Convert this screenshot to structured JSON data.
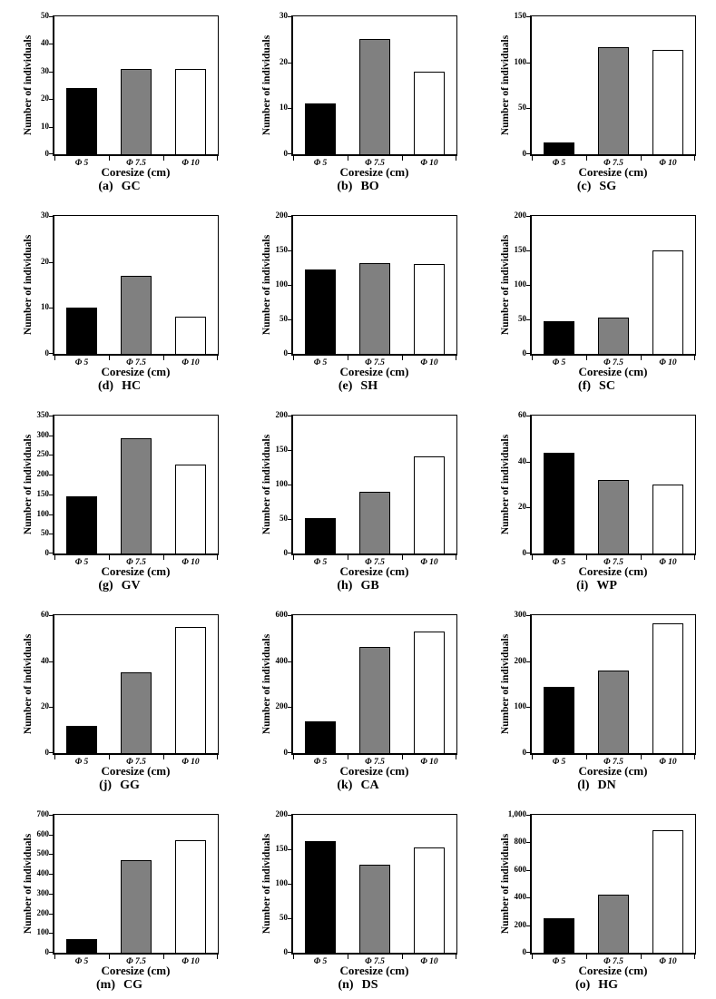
{
  "style": {
    "background": "#ffffff",
    "axis_color": "#000000",
    "bar_border": "#000000",
    "bar_colors": [
      "#000000",
      "#808080",
      "#ffffff"
    ]
  },
  "chart_data": [
    {
      "type": "bar",
      "caption_index": "(a)",
      "caption_code": "GC",
      "categories": [
        "Φ 5",
        "Φ 7.5",
        "Φ 10"
      ],
      "values": [
        24,
        31,
        31
      ],
      "ylim": [
        0,
        50
      ],
      "ytick_labels": [
        "0",
        "10",
        "20",
        "30",
        "40",
        "50"
      ],
      "xlabel": "Coresize (cm)",
      "ylabel": "Number of individuals",
      "grid": false,
      "legend": "none"
    },
    {
      "type": "bar",
      "caption_index": "(b)",
      "caption_code": "BO",
      "categories": [
        "Φ 5",
        "Φ 7.5",
        "Φ 10"
      ],
      "values": [
        11,
        25,
        18
      ],
      "ylim": [
        0,
        30
      ],
      "ytick_labels": [
        "0",
        "10",
        "20",
        "30"
      ],
      "xlabel": "Coresize (cm)",
      "ylabel": "Number of individuals",
      "grid": false,
      "legend": "none"
    },
    {
      "type": "bar",
      "caption_index": "(c)",
      "caption_code": "SG",
      "categories": [
        "Φ 5",
        "Φ 7.5",
        "Φ 10"
      ],
      "values": [
        13,
        116,
        113
      ],
      "ylim": [
        0,
        150
      ],
      "ytick_labels": [
        "0",
        "50",
        "100",
        "150"
      ],
      "xlabel": "Coresize (cm)",
      "ylabel": "Number of individuals",
      "grid": false,
      "legend": "none"
    },
    {
      "type": "bar",
      "caption_index": "(d)",
      "caption_code": "HC",
      "categories": [
        "Φ 5",
        "Φ 7.5",
        "Φ 10"
      ],
      "values": [
        10,
        17,
        8
      ],
      "ylim": [
        0,
        30
      ],
      "ytick_labels": [
        "0",
        "10",
        "20",
        "30"
      ],
      "xlabel": "Coresize (cm)",
      "ylabel": "Number of individuals",
      "grid": false,
      "legend": "none"
    },
    {
      "type": "bar",
      "caption_index": "(e)",
      "caption_code": "SH",
      "categories": [
        "Φ 5",
        "Φ 7.5",
        "Φ 10"
      ],
      "values": [
        122,
        132,
        130
      ],
      "ylim": [
        0,
        200
      ],
      "ytick_labels": [
        "0",
        "50",
        "100",
        "150",
        "200"
      ],
      "xlabel": "Coresize (cm)",
      "ylabel": "Number of individuals",
      "grid": false,
      "legend": "none"
    },
    {
      "type": "bar",
      "caption_index": "(f)",
      "caption_code": "SC",
      "categories": [
        "Φ 5",
        "Φ 7.5",
        "Φ 10"
      ],
      "values": [
        48,
        53,
        150
      ],
      "ylim": [
        0,
        200
      ],
      "ytick_labels": [
        "0",
        "50",
        "100",
        "150",
        "200"
      ],
      "xlabel": "Coresize (cm)",
      "ylabel": "Number of individuals",
      "grid": false,
      "legend": "none"
    },
    {
      "type": "bar",
      "caption_index": "(g)",
      "caption_code": "GV",
      "categories": [
        "Φ 5",
        "Φ 7.5",
        "Φ 10"
      ],
      "values": [
        145,
        293,
        225
      ],
      "ylim": [
        0,
        350
      ],
      "ytick_labels": [
        "0",
        "50",
        "100",
        "150",
        "200",
        "250",
        "300",
        "350"
      ],
      "xlabel": "Coresize (cm)",
      "ylabel": "Number of individuals",
      "grid": false,
      "legend": "none"
    },
    {
      "type": "bar",
      "caption_index": "(h)",
      "caption_code": "GB",
      "categories": [
        "Φ 5",
        "Φ 7.5",
        "Φ 10"
      ],
      "values": [
        51,
        90,
        141
      ],
      "ylim": [
        0,
        200
      ],
      "ytick_labels": [
        "0",
        "50",
        "100",
        "150",
        "200"
      ],
      "xlabel": "Coresize (cm)",
      "ylabel": "Number of individuals",
      "grid": false,
      "legend": "none"
    },
    {
      "type": "bar",
      "caption_index": "(i)",
      "caption_code": "WP",
      "categories": [
        "Φ 5",
        "Φ 7.5",
        "Φ 10"
      ],
      "values": [
        44,
        32,
        30
      ],
      "ylim": [
        0,
        60
      ],
      "ytick_labels": [
        "0",
        "20",
        "40",
        "60"
      ],
      "xlabel": "Coresize (cm)",
      "ylabel": "Number of individuals",
      "grid": false,
      "legend": "none"
    },
    {
      "type": "bar",
      "caption_index": "(j)",
      "caption_code": "GG",
      "categories": [
        "Φ 5",
        "Φ 7.5",
        "Φ 10"
      ],
      "values": [
        12,
        35,
        55
      ],
      "ylim": [
        0,
        60
      ],
      "ytick_labels": [
        "0",
        "20",
        "40",
        "60"
      ],
      "xlabel": "Coresize (cm)",
      "ylabel": "Number of individuals",
      "grid": false,
      "legend": "none"
    },
    {
      "type": "bar",
      "caption_index": "(k)",
      "caption_code": "CA",
      "categories": [
        "Φ 5",
        "Φ 7.5",
        "Φ 10"
      ],
      "values": [
        140,
        460,
        528
      ],
      "ylim": [
        0,
        600
      ],
      "ytick_labels": [
        "0",
        "200",
        "400",
        "600"
      ],
      "xlabel": "Coresize (cm)",
      "ylabel": "Number of individuals",
      "grid": false,
      "legend": "none"
    },
    {
      "type": "bar",
      "caption_index": "(l)",
      "caption_code": "DN",
      "categories": [
        "Φ 5",
        "Φ 7.5",
        "Φ 10"
      ],
      "values": [
        145,
        180,
        282
      ],
      "ylim": [
        0,
        300
      ],
      "ytick_labels": [
        "0",
        "100",
        "200",
        "300"
      ],
      "xlabel": "Coresize (cm)",
      "ylabel": "Number of individuals",
      "grid": false,
      "legend": "none"
    },
    {
      "type": "bar",
      "caption_index": "(m)",
      "caption_code": "CG",
      "categories": [
        "Φ 5",
        "Φ 7.5",
        "Φ 10"
      ],
      "values": [
        70,
        468,
        572
      ],
      "ylim": [
        0,
        700
      ],
      "ytick_labels": [
        "0",
        "100",
        "200",
        "300",
        "400",
        "500",
        "600",
        "700"
      ],
      "xlabel": "Coresize (cm)",
      "ylabel": "Number of individuals",
      "grid": false,
      "legend": "none"
    },
    {
      "type": "bar",
      "caption_index": "(n)",
      "caption_code": "DS",
      "categories": [
        "Φ 5",
        "Φ 7.5",
        "Φ 10"
      ],
      "values": [
        162,
        127,
        153
      ],
      "ylim": [
        0,
        200
      ],
      "ytick_labels": [
        "0",
        "50",
        "100",
        "150",
        "200"
      ],
      "xlabel": "Coresize (cm)",
      "ylabel": "Number of individuals",
      "grid": false,
      "legend": "none"
    },
    {
      "type": "bar",
      "caption_index": "(o)",
      "caption_code": "HG",
      "categories": [
        "Φ 5",
        "Φ 7.5",
        "Φ 10"
      ],
      "values": [
        250,
        420,
        890
      ],
      "ylim": [
        0,
        1000
      ],
      "ytick_labels": [
        "0",
        "200",
        "400",
        "600",
        "800",
        "1,000"
      ],
      "xlabel": "Coresize (cm)",
      "ylabel": "Number of individuals",
      "grid": false,
      "legend": "none"
    }
  ]
}
